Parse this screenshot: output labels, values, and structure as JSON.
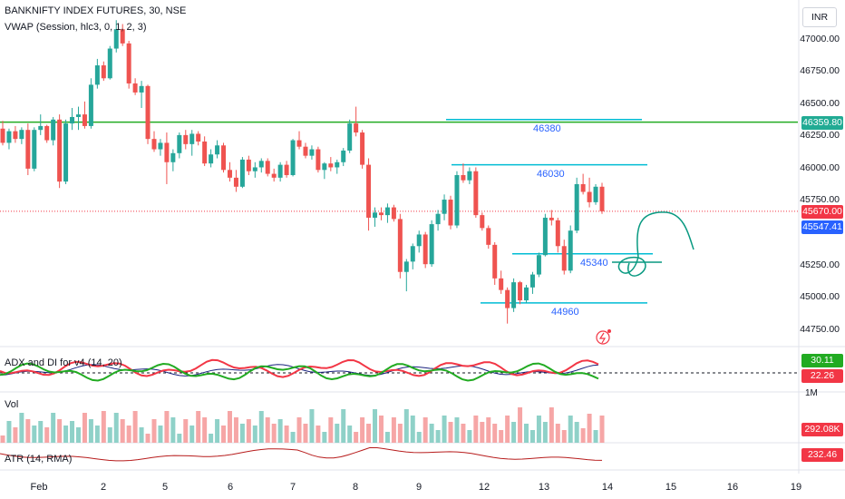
{
  "header": {
    "symbol_line": "BANKNIFTY INDEX FUTURES, 30, NSE",
    "vwap_line": "VWAP (Session, hlc3, 0, 1, 2, 3)"
  },
  "currency_button": "INR",
  "price_axis": {
    "ticks": [
      "47000.00",
      "46750.00",
      "46500.00",
      "46250.00",
      "46000.00",
      "45750.00",
      "45250.00",
      "45000.00",
      "44750.00"
    ],
    "tags": [
      {
        "label": "46359.80",
        "color": "#22ab94"
      },
      {
        "label": "45670.00",
        "color": "#f23645"
      },
      {
        "label": "45547.41",
        "color": "#2962ff"
      }
    ]
  },
  "levels": [
    {
      "label": "46380",
      "price": 46380,
      "color": "#00bcd4"
    },
    {
      "label": "46030",
      "price": 46030,
      "color": "#00bcd4"
    },
    {
      "label": "45340",
      "price": 45340,
      "color": "#00bcd4"
    },
    {
      "label": "44960",
      "price": 44960,
      "color": "#00bcd4"
    }
  ],
  "green_horizontal_line": {
    "price": 46359.8,
    "color": "#22ab22"
  },
  "indicators": {
    "adx": {
      "label": "ADX and DI for v4 (14, 20)",
      "values": [
        "30.11",
        "22.26"
      ],
      "colors": [
        "#22ab22",
        "#f23645"
      ]
    },
    "vol": {
      "label": "Vol",
      "value": "292.08K",
      "scale": "1M",
      "color": "#f23645"
    },
    "atr": {
      "label": "ATR (14, RMA)",
      "value": "232.46",
      "color": "#f23645"
    }
  },
  "time_axis": [
    "Feb",
    "2",
    "5",
    "6",
    "7",
    "8",
    "9",
    "12",
    "13",
    "14",
    "15",
    "16",
    "19"
  ],
  "chart_data": {
    "type": "candlestick",
    "timeframe": "30",
    "ylim": [
      44650,
      47250
    ],
    "candles": [
      [
        46310,
        46370,
        46180,
        46200
      ],
      [
        46200,
        46310,
        46150,
        46290
      ],
      [
        46290,
        46330,
        46200,
        46230
      ],
      [
        46230,
        46320,
        46190,
        46300
      ],
      [
        46300,
        46350,
        45950,
        46000
      ],
      [
        46000,
        46320,
        45980,
        46300
      ],
      [
        46300,
        46420,
        46260,
        46330
      ],
      [
        46330,
        46340,
        46200,
        46220
      ],
      [
        46220,
        46400,
        46180,
        46380
      ],
      [
        46380,
        46420,
        45850,
        45900
      ],
      [
        45900,
        46380,
        45880,
        46350
      ],
      [
        46350,
        46470,
        46300,
        46400
      ],
      [
        46400,
        46480,
        46300,
        46420
      ],
      [
        46420,
        46520,
        46310,
        46330
      ],
      [
        46330,
        46700,
        46310,
        46650
      ],
      [
        46650,
        46850,
        46620,
        46800
      ],
      [
        46800,
        46830,
        46680,
        46700
      ],
      [
        46700,
        46950,
        46690,
        46930
      ],
      [
        46930,
        47150,
        46900,
        47080
      ],
      [
        47080,
        47120,
        46950,
        46970
      ],
      [
        46970,
        46990,
        46620,
        46660
      ],
      [
        46660,
        46700,
        46570,
        46590
      ],
      [
        46590,
        46680,
        46470,
        46640
      ],
      [
        46640,
        46650,
        46190,
        46230
      ],
      [
        46230,
        46290,
        46130,
        46150
      ],
      [
        46150,
        46230,
        46100,
        46200
      ],
      [
        46200,
        46280,
        45880,
        46050
      ],
      [
        46050,
        46150,
        45980,
        46120
      ],
      [
        46120,
        46280,
        46080,
        46260
      ],
      [
        46260,
        46300,
        46150,
        46190
      ],
      [
        46190,
        46300,
        46100,
        46270
      ],
      [
        46270,
        46290,
        46180,
        46210
      ],
      [
        46210,
        46250,
        46020,
        46040
      ],
      [
        46040,
        46150,
        46010,
        46110
      ],
      [
        46110,
        46220,
        46080,
        46180
      ],
      [
        46180,
        46200,
        45970,
        45990
      ],
      [
        45990,
        46050,
        45900,
        45930
      ],
      [
        45930,
        45990,
        45820,
        45860
      ],
      [
        45860,
        46090,
        45850,
        46070
      ],
      [
        46070,
        46100,
        45950,
        45980
      ],
      [
        45980,
        46050,
        45930,
        46010
      ],
      [
        46010,
        46080,
        45970,
        46060
      ],
      [
        46060,
        46080,
        45940,
        45960
      ],
      [
        45960,
        46000,
        45900,
        45930
      ],
      [
        45930,
        46050,
        45900,
        46030
      ],
      [
        46030,
        46060,
        45930,
        45950
      ],
      [
        45950,
        46230,
        45940,
        46220
      ],
      [
        46220,
        46290,
        46150,
        46170
      ],
      [
        46170,
        46200,
        46080,
        46100
      ],
      [
        46100,
        46180,
        46070,
        46150
      ],
      [
        46150,
        46170,
        45970,
        45990
      ],
      [
        45990,
        46050,
        45920,
        46040
      ],
      [
        46040,
        46090,
        45980,
        46010
      ],
      [
        46010,
        46070,
        45960,
        46050
      ],
      [
        46050,
        46160,
        46020,
        46140
      ],
      [
        46140,
        46380,
        46120,
        46350
      ],
      [
        46350,
        46480,
        46250,
        46280
      ],
      [
        46280,
        46300,
        46000,
        46030
      ],
      [
        46030,
        46080,
        45520,
        45620
      ],
      [
        45620,
        45700,
        45550,
        45660
      ],
      [
        45660,
        45700,
        45600,
        45640
      ],
      [
        45640,
        45730,
        45580,
        45700
      ],
      [
        45700,
        45720,
        45590,
        45610
      ],
      [
        45610,
        45650,
        45150,
        45200
      ],
      [
        45200,
        45300,
        45050,
        45280
      ],
      [
        45280,
        45420,
        45220,
        45400
      ],
      [
        45400,
        45520,
        45350,
        45490
      ],
      [
        45490,
        45510,
        45230,
        45260
      ],
      [
        45260,
        45600,
        45240,
        45570
      ],
      [
        45570,
        45680,
        45520,
        45650
      ],
      [
        45650,
        45800,
        45600,
        45760
      ],
      [
        45760,
        45790,
        45530,
        45560
      ],
      [
        45560,
        45980,
        45540,
        45950
      ],
      [
        45950,
        46040,
        45890,
        45910
      ],
      [
        45910,
        46010,
        45880,
        45980
      ],
      [
        45980,
        46010,
        45620,
        45640
      ],
      [
        45640,
        45660,
        45520,
        45540
      ],
      [
        45540,
        45560,
        45380,
        45410
      ],
      [
        45410,
        45430,
        45100,
        45150
      ],
      [
        45150,
        45210,
        45030,
        45060
      ],
      [
        45060,
        45080,
        44800,
        44920
      ],
      [
        44920,
        45150,
        44890,
        45120
      ],
      [
        45120,
        45130,
        44950,
        44980
      ],
      [
        44980,
        45100,
        44960,
        45080
      ],
      [
        45080,
        45200,
        45030,
        45180
      ],
      [
        45180,
        45350,
        45160,
        45330
      ],
      [
        45330,
        45650,
        45320,
        45620
      ],
      [
        45620,
        45680,
        45560,
        45600
      ],
      [
        45600,
        45620,
        45350,
        45400
      ],
      [
        45400,
        45450,
        45180,
        45210
      ],
      [
        45210,
        45560,
        45190,
        45520
      ],
      [
        45520,
        45930,
        45500,
        45880
      ],
      [
        45880,
        45960,
        45800,
        45820
      ],
      [
        45820,
        45930,
        45700,
        45740
      ],
      [
        45740,
        45880,
        45720,
        45860
      ],
      [
        45860,
        45890,
        45650,
        45670
      ]
    ],
    "volume": {
      "last": 292080
    },
    "adx_di": {
      "adx": 22.26,
      "di_plus": 30.11
    }
  }
}
